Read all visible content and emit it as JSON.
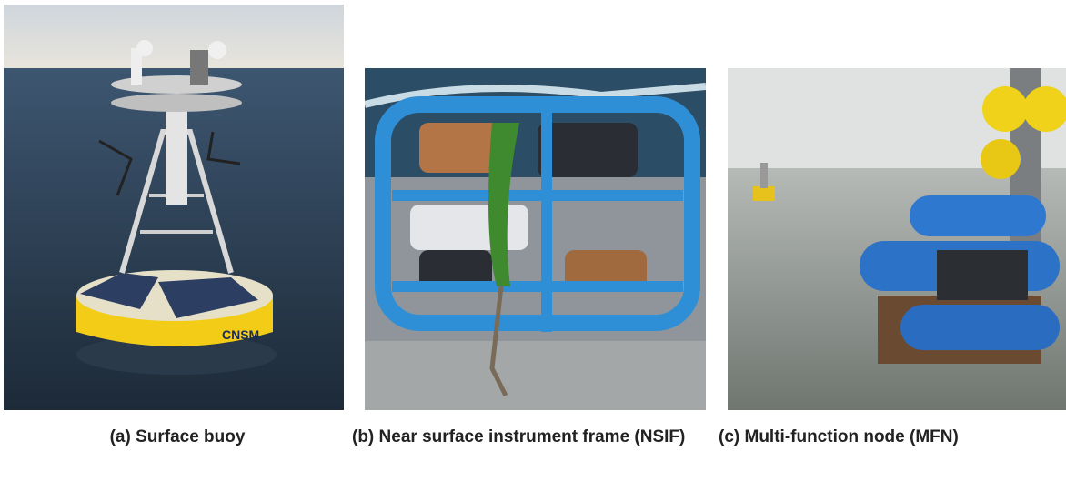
{
  "figure": {
    "panels": [
      {
        "caption": "(a) Surface buoy"
      },
      {
        "caption": "(b) Near surface instrument frame (NSIF)"
      },
      {
        "caption": "(c) Multi-function node (MFN)"
      }
    ]
  }
}
